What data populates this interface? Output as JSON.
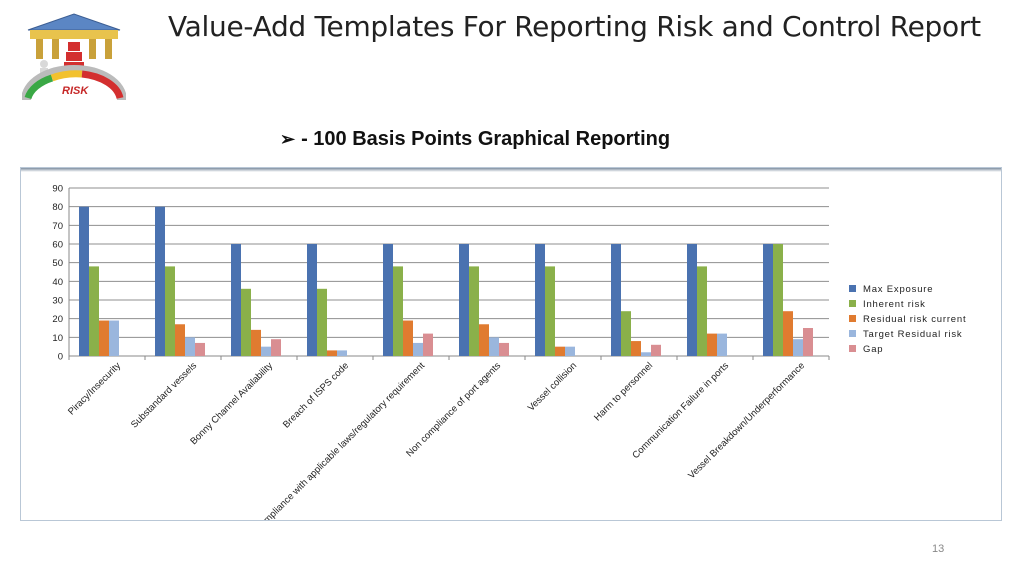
{
  "slide": {
    "title": "Value-Add Templates For Reporting Risk and Control Report",
    "subtitle": "- 100 Basis Points Graphical Reporting",
    "page_number": "13",
    "logo_text": "RISK"
  },
  "chart_data": {
    "type": "bar",
    "title": "",
    "xlabel": "",
    "ylabel": "",
    "ylim": [
      0,
      90
    ],
    "yticks": [
      0,
      10,
      20,
      30,
      40,
      50,
      60,
      70,
      80,
      90
    ],
    "grid": true,
    "legend_position": "right",
    "categories": [
      "Piracy/Insecurity",
      "Substandard vessels",
      "Bonny Channel Availability",
      "Breach of ISPS code",
      "Non- compliance with applicable laws/regulatory requirement",
      "Non compliance of port agents",
      "Vessel collision",
      "Harm to personnel",
      "Communication Failure in ports",
      "Vessel Breakdown/Underperformance"
    ],
    "series": [
      {
        "name": "Max Exposure",
        "color": "#4a72b0",
        "values": [
          80,
          80,
          60,
          60,
          60,
          60,
          60,
          60,
          60,
          60
        ]
      },
      {
        "name": "Inherent risk",
        "color": "#8ab04a",
        "values": [
          48,
          48,
          36,
          36,
          48,
          48,
          48,
          24,
          48,
          60
        ]
      },
      {
        "name": "Residual risk current",
        "color": "#e07b30",
        "values": [
          19,
          17,
          14,
          3,
          19,
          17,
          5,
          8,
          12,
          24
        ]
      },
      {
        "name": "Target Residual risk",
        "color": "#9ab6dd",
        "values": [
          19,
          10,
          5,
          3,
          7,
          10,
          5,
          2,
          12,
          9
        ]
      },
      {
        "name": "Gap",
        "color": "#d98e92",
        "values": [
          0,
          7,
          9,
          0,
          12,
          7,
          0,
          6,
          0,
          15
        ]
      }
    ]
  }
}
